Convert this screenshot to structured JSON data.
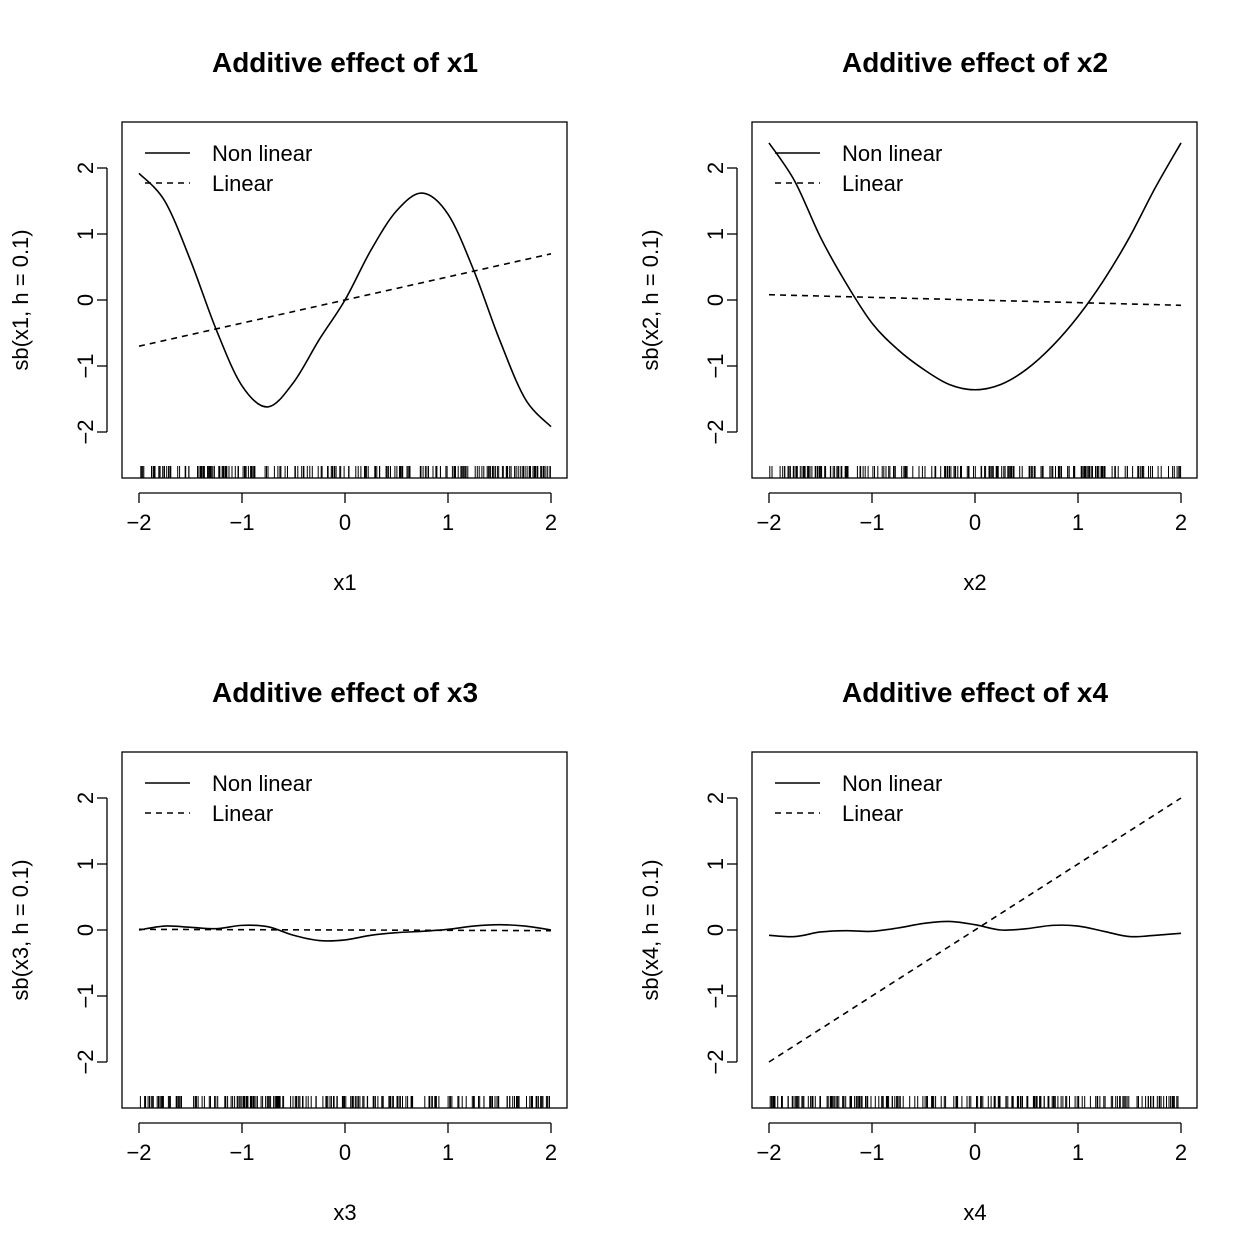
{
  "chart_data": [
    {
      "type": "line",
      "title": "Additive effect of x1",
      "xlabel": "x1",
      "ylabel": "sb(x1, h = 0.1)",
      "xlim": [
        -2,
        2
      ],
      "ylim": [
        -2.6,
        2.6
      ],
      "xticks": [
        "−2",
        "−1",
        "0",
        "1",
        "2"
      ],
      "yticks": [
        "−2",
        "−1",
        "0",
        "1",
        "2"
      ],
      "legend": {
        "position": "top-left",
        "entries": [
          "Non linear",
          "Linear"
        ]
      },
      "series": [
        {
          "name": "Non linear",
          "style": "solid",
          "x": [
            -2,
            -1.75,
            -1.5,
            -1.25,
            -1,
            -0.75,
            -0.5,
            -0.25,
            0,
            0.25,
            0.5,
            0.75,
            1,
            1.25,
            1.5,
            1.75,
            2
          ],
          "y": [
            1.92,
            1.5,
            0.6,
            -0.45,
            -1.3,
            -1.62,
            -1.25,
            -0.6,
            0.0,
            0.75,
            1.35,
            1.62,
            1.3,
            0.45,
            -0.6,
            -1.5,
            -1.92
          ]
        },
        {
          "name": "Linear",
          "style": "dashed",
          "x": [
            -2,
            2
          ],
          "y": [
            -0.7,
            0.7
          ]
        }
      ]
    },
    {
      "type": "line",
      "title": "Additive effect of x2",
      "xlabel": "x2",
      "ylabel": "sb(x2, h = 0.1)",
      "xlim": [
        -2,
        2
      ],
      "ylim": [
        -2.6,
        2.6
      ],
      "xticks": [
        "−2",
        "−1",
        "0",
        "1",
        "2"
      ],
      "yticks": [
        "−2",
        "−1",
        "0",
        "1",
        "2"
      ],
      "legend": {
        "position": "top-left",
        "entries": [
          "Non linear",
          "Linear"
        ]
      },
      "series": [
        {
          "name": "Non linear",
          "style": "solid",
          "x": [
            -2,
            -1.75,
            -1.5,
            -1.25,
            -1,
            -0.75,
            -0.5,
            -0.25,
            0,
            0.25,
            0.5,
            0.75,
            1,
            1.25,
            1.5,
            1.75,
            2
          ],
          "y": [
            2.38,
            1.8,
            0.95,
            0.25,
            -0.35,
            -0.75,
            -1.05,
            -1.28,
            -1.36,
            -1.28,
            -1.05,
            -0.7,
            -0.25,
            0.3,
            0.95,
            1.7,
            2.38
          ]
        },
        {
          "name": "Linear",
          "style": "dashed",
          "x": [
            -2,
            2
          ],
          "y": [
            0.08,
            -0.08
          ]
        }
      ]
    },
    {
      "type": "line",
      "title": "Additive effect of x3",
      "xlabel": "x3",
      "ylabel": "sb(x3, h = 0.1)",
      "xlim": [
        -2,
        2
      ],
      "ylim": [
        -2.6,
        2.6
      ],
      "xticks": [
        "−2",
        "−1",
        "0",
        "1",
        "2"
      ],
      "yticks": [
        "−2",
        "−1",
        "0",
        "1",
        "2"
      ],
      "legend": {
        "position": "top-left",
        "entries": [
          "Non linear",
          "Linear"
        ]
      },
      "series": [
        {
          "name": "Non linear",
          "style": "solid",
          "x": [
            -2,
            -1.75,
            -1.5,
            -1.25,
            -1,
            -0.75,
            -0.5,
            -0.25,
            0,
            0.25,
            0.5,
            0.75,
            1,
            1.25,
            1.5,
            1.75,
            2
          ],
          "y": [
            0.0,
            0.06,
            0.04,
            0.02,
            0.07,
            0.05,
            -0.08,
            -0.16,
            -0.15,
            -0.08,
            -0.04,
            -0.02,
            0.01,
            0.06,
            0.08,
            0.06,
            0.0
          ]
        },
        {
          "name": "Linear",
          "style": "dashed",
          "x": [
            -2,
            2
          ],
          "y": [
            0.01,
            -0.01
          ]
        }
      ]
    },
    {
      "type": "line",
      "title": "Additive effect of x4",
      "xlabel": "x4",
      "ylabel": "sb(x4, h = 0.1)",
      "xlim": [
        -2,
        2
      ],
      "ylim": [
        -2.6,
        2.6
      ],
      "xticks": [
        "−2",
        "−1",
        "0",
        "1",
        "2"
      ],
      "yticks": [
        "−2",
        "−1",
        "0",
        "1",
        "2"
      ],
      "legend": {
        "position": "top-left",
        "entries": [
          "Non linear",
          "Linear"
        ]
      },
      "series": [
        {
          "name": "Non linear",
          "style": "solid",
          "x": [
            -2,
            -1.75,
            -1.5,
            -1.25,
            -1,
            -0.75,
            -0.5,
            -0.25,
            0,
            0.25,
            0.5,
            0.75,
            1,
            1.25,
            1.5,
            1.75,
            2
          ],
          "y": [
            -0.08,
            -0.1,
            -0.03,
            -0.01,
            -0.02,
            0.03,
            0.1,
            0.13,
            0.08,
            0.0,
            0.02,
            0.07,
            0.06,
            -0.02,
            -0.1,
            -0.08,
            -0.05
          ]
        },
        {
          "name": "Linear",
          "style": "dashed",
          "x": [
            -2,
            2
          ],
          "y": [
            -2.0,
            2.0
          ]
        }
      ]
    }
  ]
}
